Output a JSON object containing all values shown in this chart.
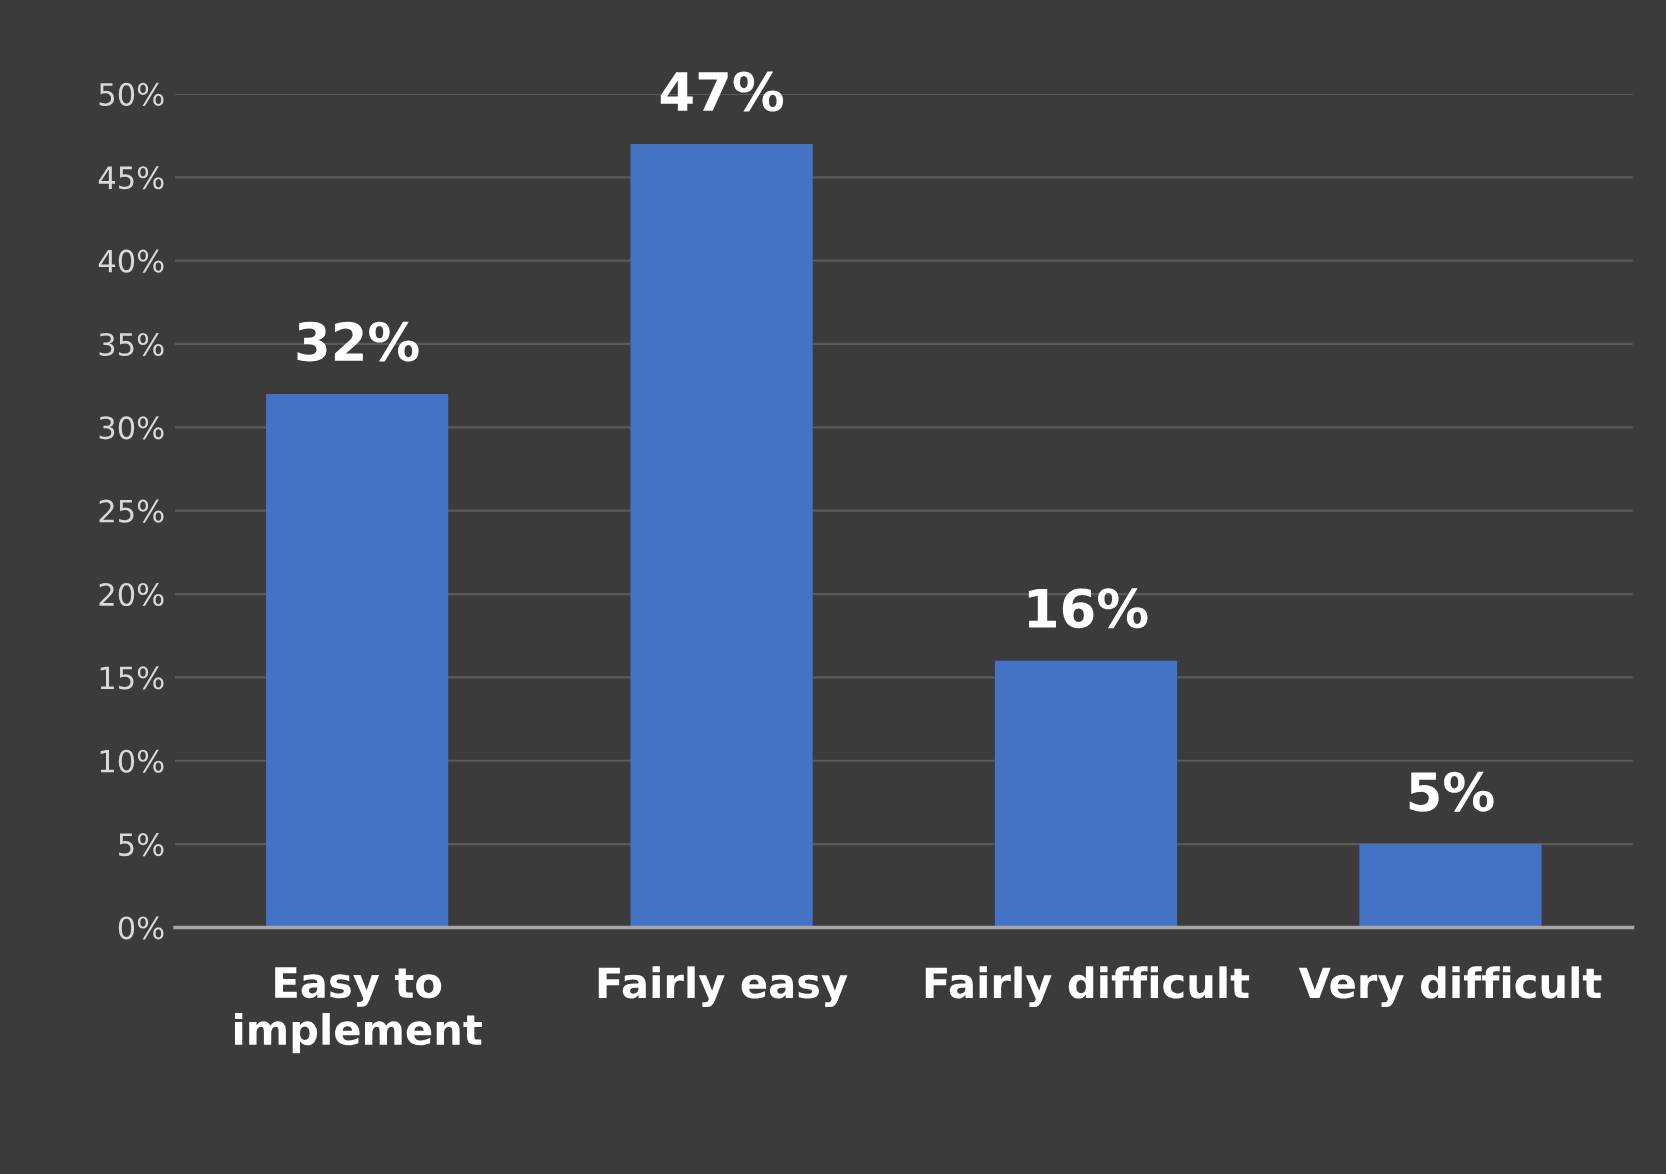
{
  "chart_data": {
    "type": "bar",
    "categories": [
      "Easy to\nimplement",
      "Fairly easy",
      "Fairly difficult",
      "Very difficult"
    ],
    "values": [
      32,
      47,
      16,
      5
    ],
    "color": "#4472c4",
    "ylim": [
      0,
      50
    ],
    "yticks": [
      {
        "value": 0,
        "label": "0%"
      },
      {
        "value": 5,
        "label": "5%"
      },
      {
        "value": 10,
        "label": "10%"
      },
      {
        "value": 15,
        "label": "15%"
      },
      {
        "value": 20,
        "label": "20%"
      },
      {
        "value": 25,
        "label": "25%"
      },
      {
        "value": 30,
        "label": "30%"
      },
      {
        "value": 35,
        "label": "35%"
      },
      {
        "value": 40,
        "label": "40%"
      },
      {
        "value": 45,
        "label": "45%"
      },
      {
        "value": 50,
        "label": "50%"
      }
    ],
    "value_labels": [
      "32%",
      "47%",
      "16%",
      "5%"
    ],
    "grid": "y"
  }
}
